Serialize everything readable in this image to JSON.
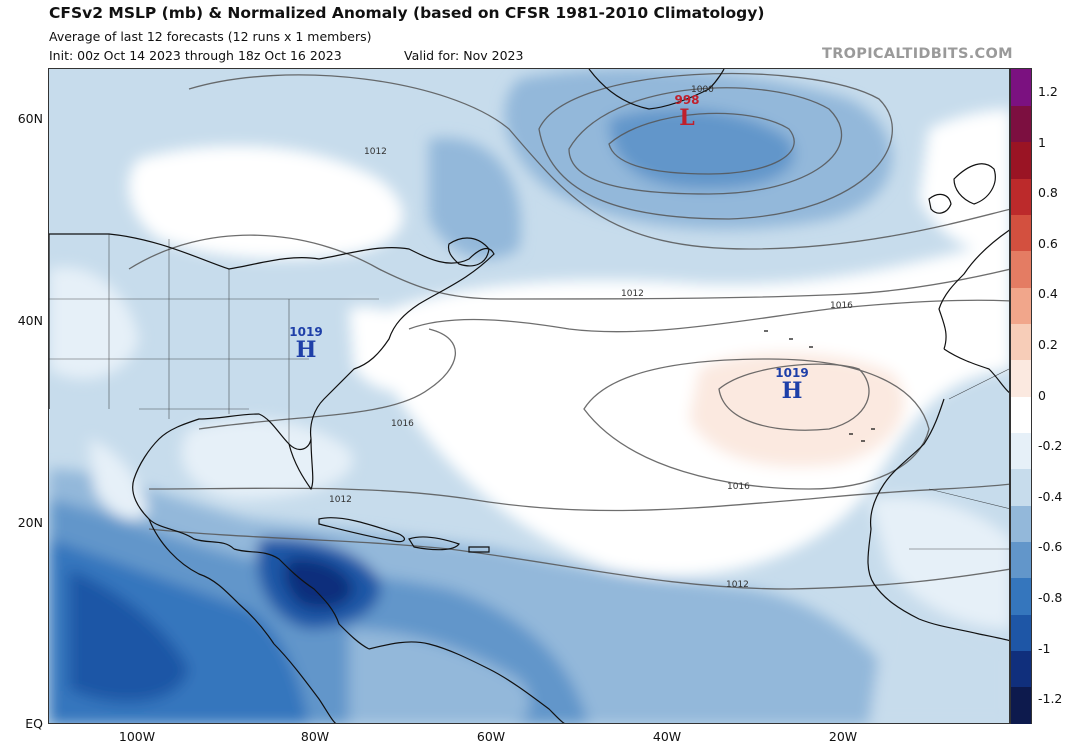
{
  "header": {
    "title": "CFSv2 MSLP (mb) & Normalized Anomaly (based on CFSR 1981-2010 Climatology)",
    "subtitle": "Average of last 12 forecasts (12 runs x 1 members)",
    "init": "Init: 00z Oct 14 2023 through 18z Oct 16 2023",
    "valid": "Valid for: Nov 2023",
    "brand": "TROPICALTIDBITS.COM"
  },
  "axes": {
    "lat_labels": [
      "60N",
      "40N",
      "20N",
      "EQ"
    ],
    "lon_labels": [
      "100W",
      "80W",
      "60W",
      "40W",
      "20W"
    ]
  },
  "colorbar": {
    "labels": [
      "1.2",
      "1",
      "0.8",
      "0.6",
      "0.4",
      "0.2",
      "0",
      "-0.2",
      "-0.4",
      "-0.6",
      "-0.8",
      "-1",
      "-1.2"
    ],
    "colors": [
      "#0d1a4d",
      "#102f7c",
      "#1e56a6",
      "#3576bd",
      "#6296ca",
      "#93b8da",
      "#c7dcec",
      "#e6f0f8",
      "#ffffff",
      "#fbe9e0",
      "#f7cdb8",
      "#f1a68b",
      "#e47c63",
      "#d3503f",
      "#bc2a2b",
      "#9a1424",
      "#7c0f40",
      "#7b1180"
    ]
  },
  "centers": [
    {
      "label": "998",
      "letter": "L"
    },
    {
      "label": "1019",
      "letter": "H"
    },
    {
      "label": "1019",
      "letter": "H"
    }
  ],
  "contours": [
    "1000",
    "1012",
    "1012",
    "1016",
    "1016",
    "1016",
    "1012",
    "1012"
  ]
}
